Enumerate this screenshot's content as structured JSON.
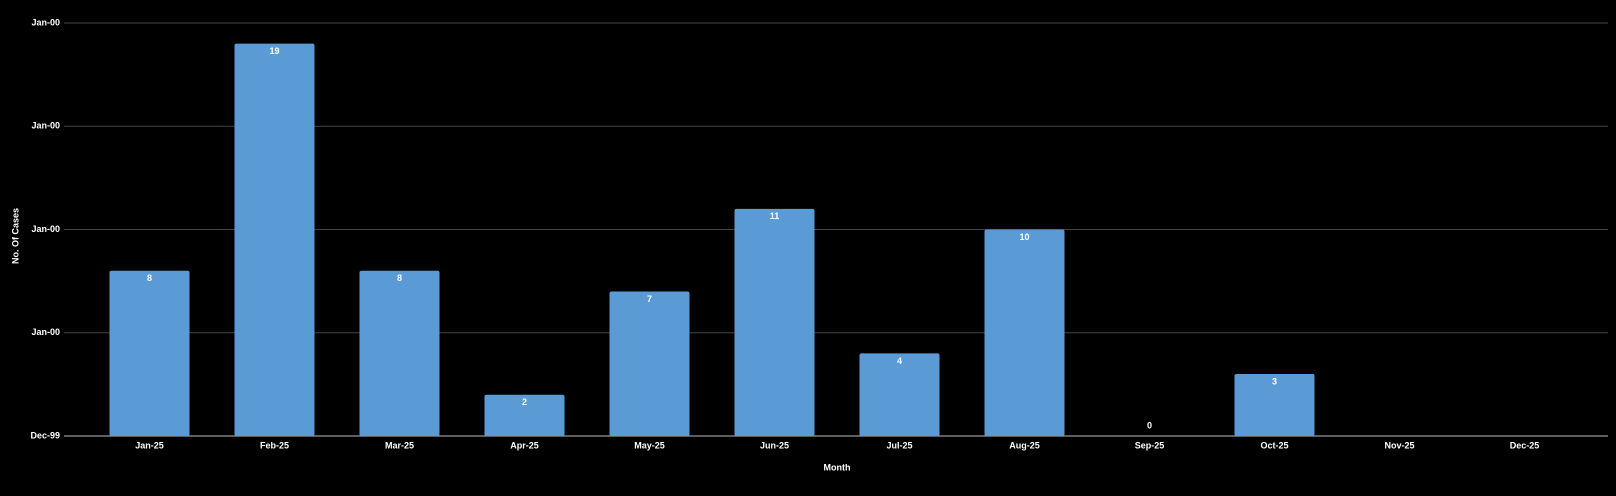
{
  "chart_data": {
    "type": "bar",
    "x_label": "Month",
    "y_label": "No. Of Cases",
    "categories": [
      "Jan-25",
      "Feb-25",
      "Mar-25",
      "Apr-25",
      "May-25",
      "Jun-25",
      "Jul-25",
      "Aug-25",
      "Sep-25",
      "Oct-25",
      "Nov-25",
      "Dec-25"
    ],
    "values": [
      8,
      19,
      8,
      2,
      7,
      11,
      4,
      10,
      0,
      3,
      null,
      null
    ],
    "color": "#5b9bd5",
    "ylim": [
      0,
      20
    ],
    "yticks": [
      {
        "value": 0,
        "label": "Dec-99"
      },
      {
        "value": 5,
        "label": "Jan-00"
      },
      {
        "value": 10,
        "label": "Jan-00"
      },
      {
        "value": 15,
        "label": "Jan-00"
      },
      {
        "value": 20,
        "label": "Jan-00"
      }
    ],
    "grid": true
  }
}
